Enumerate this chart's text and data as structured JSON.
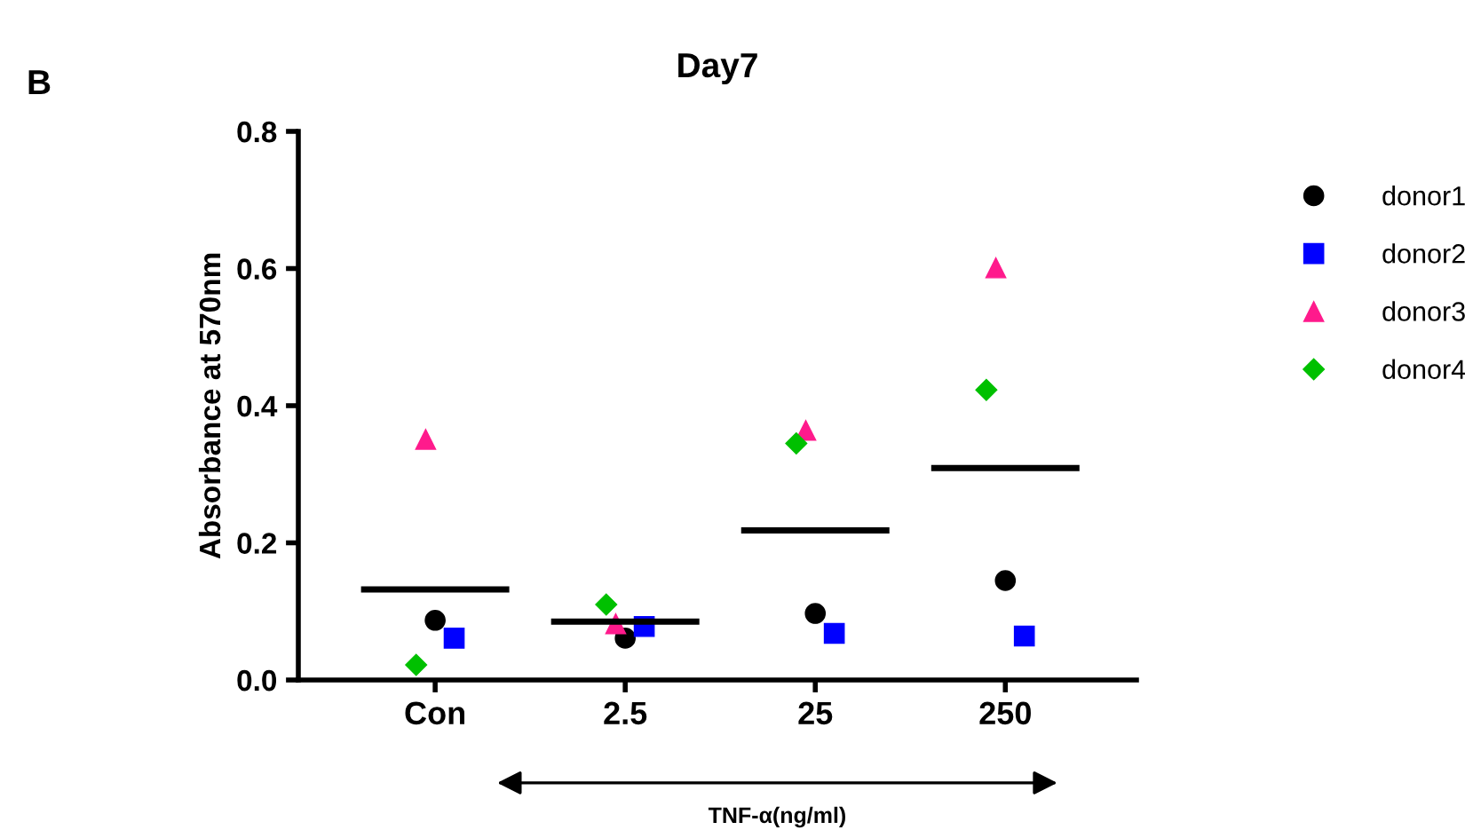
{
  "chart_data": {
    "type": "scatter",
    "title": "Day7",
    "ylabel": "Absorbance at 570nm",
    "categories": [
      "Con",
      "2.5",
      "25",
      "250"
    ],
    "series": [
      {
        "name": "donor1",
        "color": "#000000",
        "marker": "circle",
        "values": [
          0.087,
          0.061,
          0.097,
          0.145
        ]
      },
      {
        "name": "donor2",
        "color": "#0000ff",
        "marker": "square",
        "values": [
          0.061,
          0.078,
          0.068,
          0.064
        ]
      },
      {
        "name": "donor3",
        "color": "#ff1a8c",
        "marker": "triangle",
        "values": [
          0.351,
          0.082,
          0.364,
          0.601
        ]
      },
      {
        "name": "donor4",
        "color": "#00c000",
        "marker": "diamond",
        "values": [
          0.022,
          0.11,
          0.345,
          0.423
        ]
      }
    ],
    "ref_lines": [
      {
        "axis": "y",
        "value": 0.132,
        "color": "#000000"
      },
      {
        "axis": "y",
        "value": 0.085,
        "color": "#000000"
      },
      {
        "axis": "y",
        "value": 0.218,
        "color": "#000000"
      },
      {
        "axis": "y",
        "value": 0.309,
        "color": "#000000"
      }
    ],
    "ylim": [
      0,
      0.8
    ],
    "yticks": [
      {
        "value": 0,
        "label": "0.0"
      },
      0.2,
      0.4,
      0.6,
      0.8
    ],
    "grid": false,
    "legend": "right",
    "annotations": [
      "B",
      "TNF-α(ng/ml)"
    ]
  }
}
